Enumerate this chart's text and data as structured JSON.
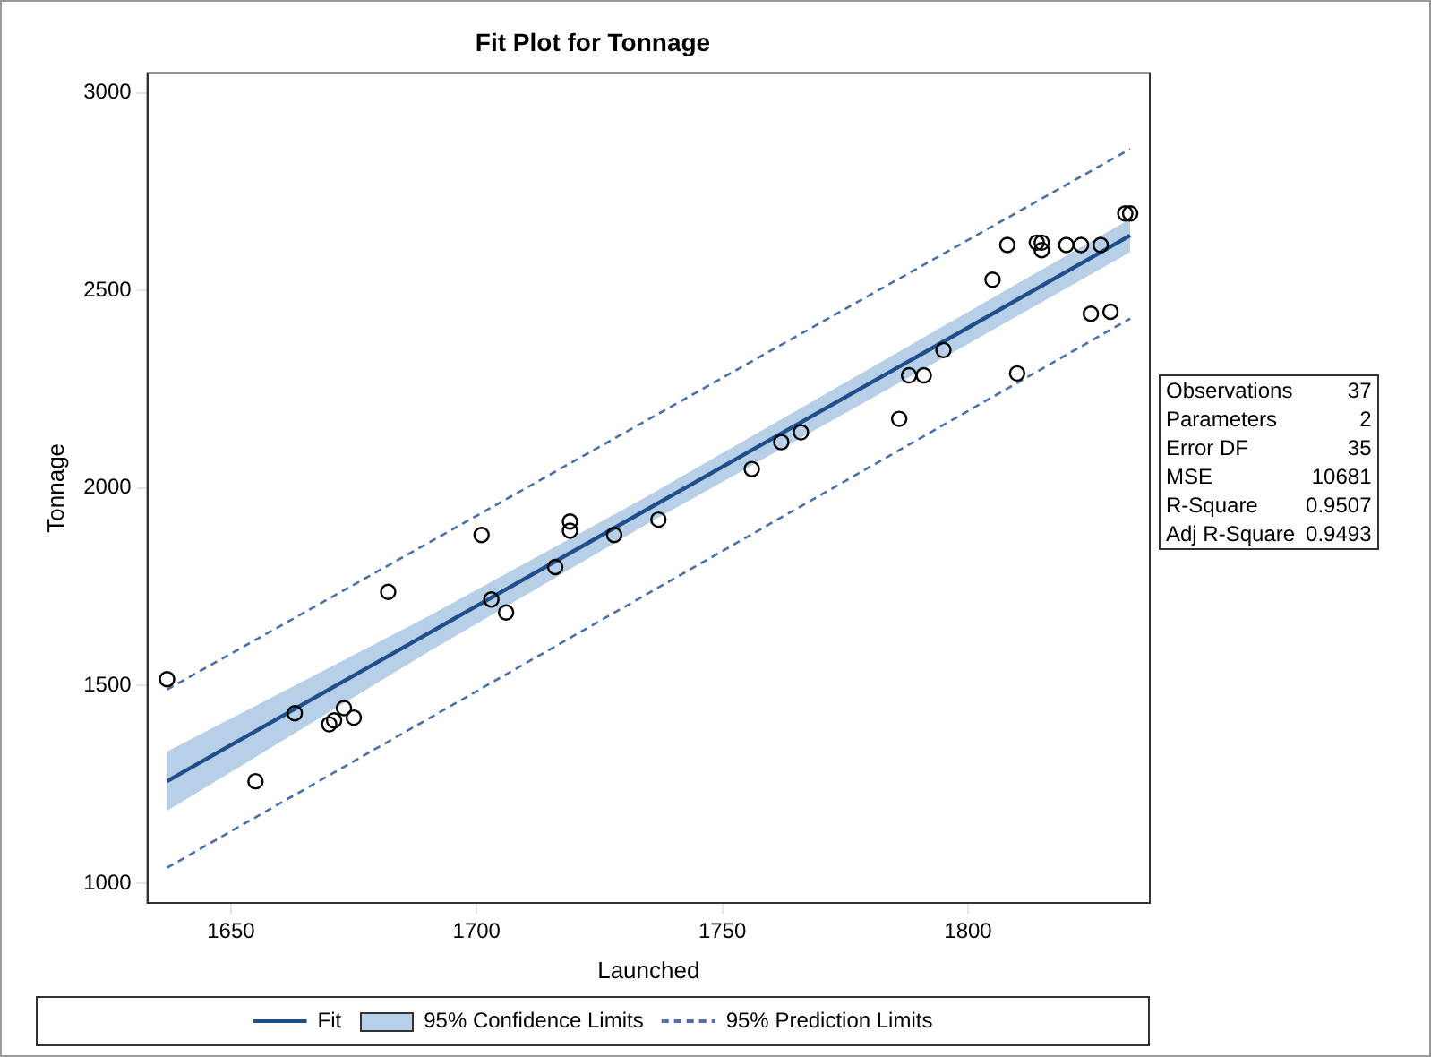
{
  "chart_data": {
    "type": "scatter",
    "title": "Fit Plot for Tonnage",
    "xlabel": "Launched",
    "ylabel": "Tonnage",
    "xlim": [
      1633,
      1837
    ],
    "xticks": [
      1650,
      1700,
      1750,
      1800
    ],
    "ylim": [
      950,
      3050
    ],
    "yticks": [
      1000,
      1500,
      2000,
      2500,
      3000
    ],
    "grid": false,
    "legend": "bottom",
    "annotations": [
      "95% Confidence Limits",
      "Observations",
      "37",
      "Parameters",
      "2",
      "Error DF",
      "35",
      "MSE",
      "10681",
      "R-Square",
      "0.9507",
      "Adj R-Square",
      "0.9493"
    ],
    "series": [
      {
        "name": "Fit",
        "type": "line",
        "color": "#1f4e8c",
        "marker": "none",
        "line_style": "solid",
        "x": [
          1637,
          1690,
          1735,
          1790,
          1833
        ],
        "values": [
          1258,
          1631,
          1948,
          2335,
          2639
        ],
        "lower": [
          1183,
          1584,
          1911,
          2294,
          2597
        ],
        "upper": [
          1333,
          1674,
          1981,
          2374,
          2681
        ]
      },
      {
        "name": "95% Prediction Limits",
        "type": "line",
        "color": "#4a6fae",
        "marker": "none",
        "line_style": "dashed",
        "x": [
          1637,
          1833
        ],
        "values": [
          1490,
          2858
        ]
      },
      {
        "type": "line",
        "color": "#4a6fae",
        "marker": "none",
        "line_style": "dashed",
        "x": [
          1637,
          1833
        ],
        "values": [
          1039,
          2429
        ]
      },
      {
        "color": "#000000",
        "marker": "circle",
        "x": [
          1637,
          1655,
          1663,
          1670,
          1671,
          1673,
          1675,
          1682,
          1701,
          1703,
          1706,
          1716,
          1719,
          1719,
          1728,
          1737,
          1756,
          1762,
          1766,
          1786,
          1788,
          1791,
          1795,
          1805,
          1808,
          1810,
          1814,
          1815,
          1815,
          1820,
          1823,
          1825,
          1827,
          1829,
          1832,
          1833
        ],
        "values": [
          1516,
          1258,
          1430,
          1402,
          1412,
          1443,
          1419,
          1737,
          1881,
          1718,
          1685,
          1800,
          1915,
          1892,
          1881,
          1920,
          2048,
          2116,
          2141,
          2175,
          2285,
          2285,
          2349,
          2527,
          2615,
          2290,
          2621,
          2621,
          2602,
          2615,
          2615,
          2441,
          2615,
          2446,
          2695,
          2695
        ]
      }
    ]
  }
}
